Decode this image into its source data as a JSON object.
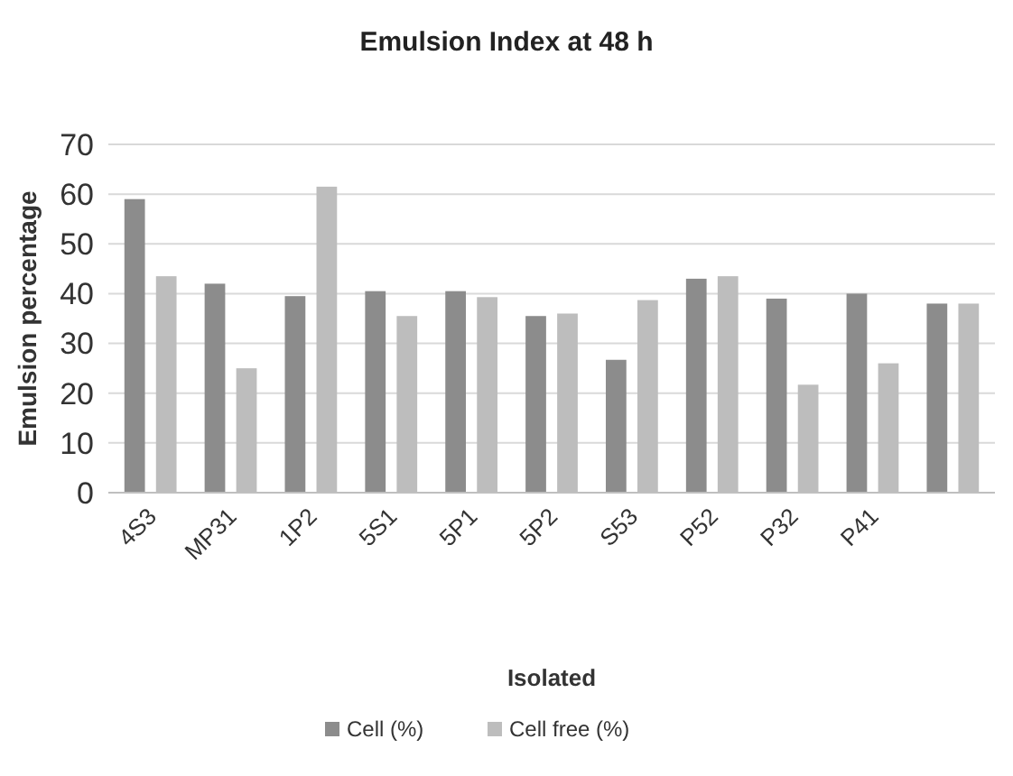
{
  "chart_data": {
    "type": "bar",
    "title": "Emulsion Index at 48 h",
    "xlabel": "Isolated",
    "ylabel": "Emulsion percentage",
    "categories": [
      "4S3",
      "MP31",
      "1P2",
      "5S1",
      "5P1",
      "5P2",
      "S53",
      "P52",
      "P32",
      "P41",
      null
    ],
    "series": [
      {
        "name": "Cell (%)",
        "color": "#8c8c8c",
        "values": [
          59,
          42,
          39.5,
          40.5,
          40.5,
          35.5,
          26.7,
          43,
          39,
          40,
          38
        ]
      },
      {
        "name": "Cell free (%)",
        "color": "#bdbdbd",
        "values": [
          43.5,
          25,
          61.5,
          35.5,
          39.3,
          36,
          38.7,
          43.5,
          21.7,
          26,
          38
        ]
      }
    ],
    "ylim": [
      0,
      70
    ],
    "yticks": [
      0,
      10,
      20,
      30,
      40,
      50,
      60,
      70
    ],
    "grid": "y",
    "legend": "bottom"
  }
}
